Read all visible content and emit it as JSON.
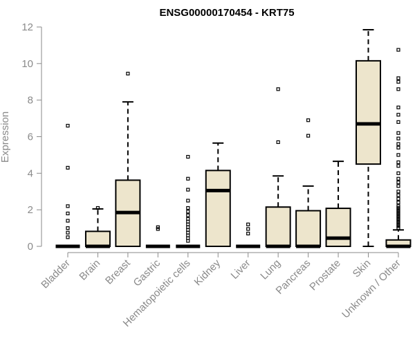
{
  "chart_data": {
    "type": "box",
    "title": "ENSG00000170454 - KRT75",
    "xlabel": "",
    "ylabel": "Expression",
    "ylim": [
      0,
      12
    ],
    "yticks": [
      0,
      2,
      4,
      6,
      8,
      10,
      12
    ],
    "grid": false,
    "legend": "none",
    "colors": {
      "box_fill": "#ede5cc",
      "stroke": "#000000",
      "axis": "#8a8a8a"
    },
    "categories": [
      "Bladder",
      "Brain",
      "Breast",
      "Gastric",
      "Hematopoietic cells",
      "Kidney",
      "Liver",
      "Lung",
      "Pancreas",
      "Prostate",
      "Skin",
      "Unknown / Other"
    ],
    "boxes": [
      {
        "category": "Bladder",
        "min": 0,
        "q1": 0,
        "median": 0,
        "q3": 0,
        "max": 0,
        "outliers": [
          0.5,
          0.75,
          1.0,
          1.4,
          1.8,
          2.2,
          4.3,
          6.6
        ]
      },
      {
        "category": "Brain",
        "min": 0,
        "q1": 0,
        "median": 0,
        "q3": 0.82,
        "max": 2.05,
        "outliers": [
          2.1
        ]
      },
      {
        "category": "Breast",
        "min": 0,
        "q1": 0,
        "median": 1.85,
        "q3": 3.62,
        "max": 7.9,
        "outliers": [
          9.45
        ]
      },
      {
        "category": "Gastric",
        "min": 0,
        "q1": 0,
        "median": 0,
        "q3": 0,
        "max": 0,
        "outliers": [
          0.95,
          1.05
        ]
      },
      {
        "category": "Hematopoietic cells",
        "min": 0,
        "q1": 0,
        "median": 0,
        "q3": 0,
        "max": 0,
        "outliers": [
          0.3,
          0.45,
          0.6,
          0.75,
          0.9,
          1.05,
          1.2,
          1.35,
          1.5,
          1.7,
          1.9,
          2.1,
          2.5,
          3.1,
          3.7,
          4.9
        ]
      },
      {
        "category": "Kidney",
        "min": 0,
        "q1": 0,
        "median": 3.05,
        "q3": 4.15,
        "max": 5.65,
        "outliers": []
      },
      {
        "category": "Liver",
        "min": 0,
        "q1": 0,
        "median": 0,
        "q3": 0,
        "max": 0,
        "outliers": [
          0.7,
          0.95,
          1.2
        ]
      },
      {
        "category": "Lung",
        "min": 0,
        "q1": 0,
        "median": 0,
        "q3": 2.15,
        "max": 3.85,
        "outliers": [
          5.7,
          8.6
        ]
      },
      {
        "category": "Pancreas",
        "min": 0,
        "q1": 0,
        "median": 0,
        "q3": 1.95,
        "max": 3.3,
        "outliers": [
          6.05,
          6.9
        ]
      },
      {
        "category": "Prostate",
        "min": 0,
        "q1": 0,
        "median": 0.45,
        "q3": 2.08,
        "max": 4.65,
        "outliers": []
      },
      {
        "category": "Skin",
        "min": 0,
        "q1": 4.5,
        "median": 6.7,
        "q3": 10.15,
        "max": 11.85,
        "outliers": []
      },
      {
        "category": "Unknown / Other",
        "min": 0,
        "q1": 0,
        "median": 0,
        "q3": 0.35,
        "max": 0.9,
        "outliers": [
          1.0,
          1.1,
          1.2,
          1.3,
          1.4,
          1.5,
          1.6,
          1.7,
          1.8,
          1.9,
          2.0,
          2.1,
          2.2,
          2.4,
          2.6,
          2.8,
          3.0,
          3.3,
          3.5,
          3.7,
          4.0,
          4.4,
          4.6,
          5.0,
          5.4,
          5.6,
          5.9,
          6.2,
          6.8,
          7.2,
          7.6,
          8.6,
          9.0,
          9.2,
          10.75
        ]
      }
    ]
  }
}
